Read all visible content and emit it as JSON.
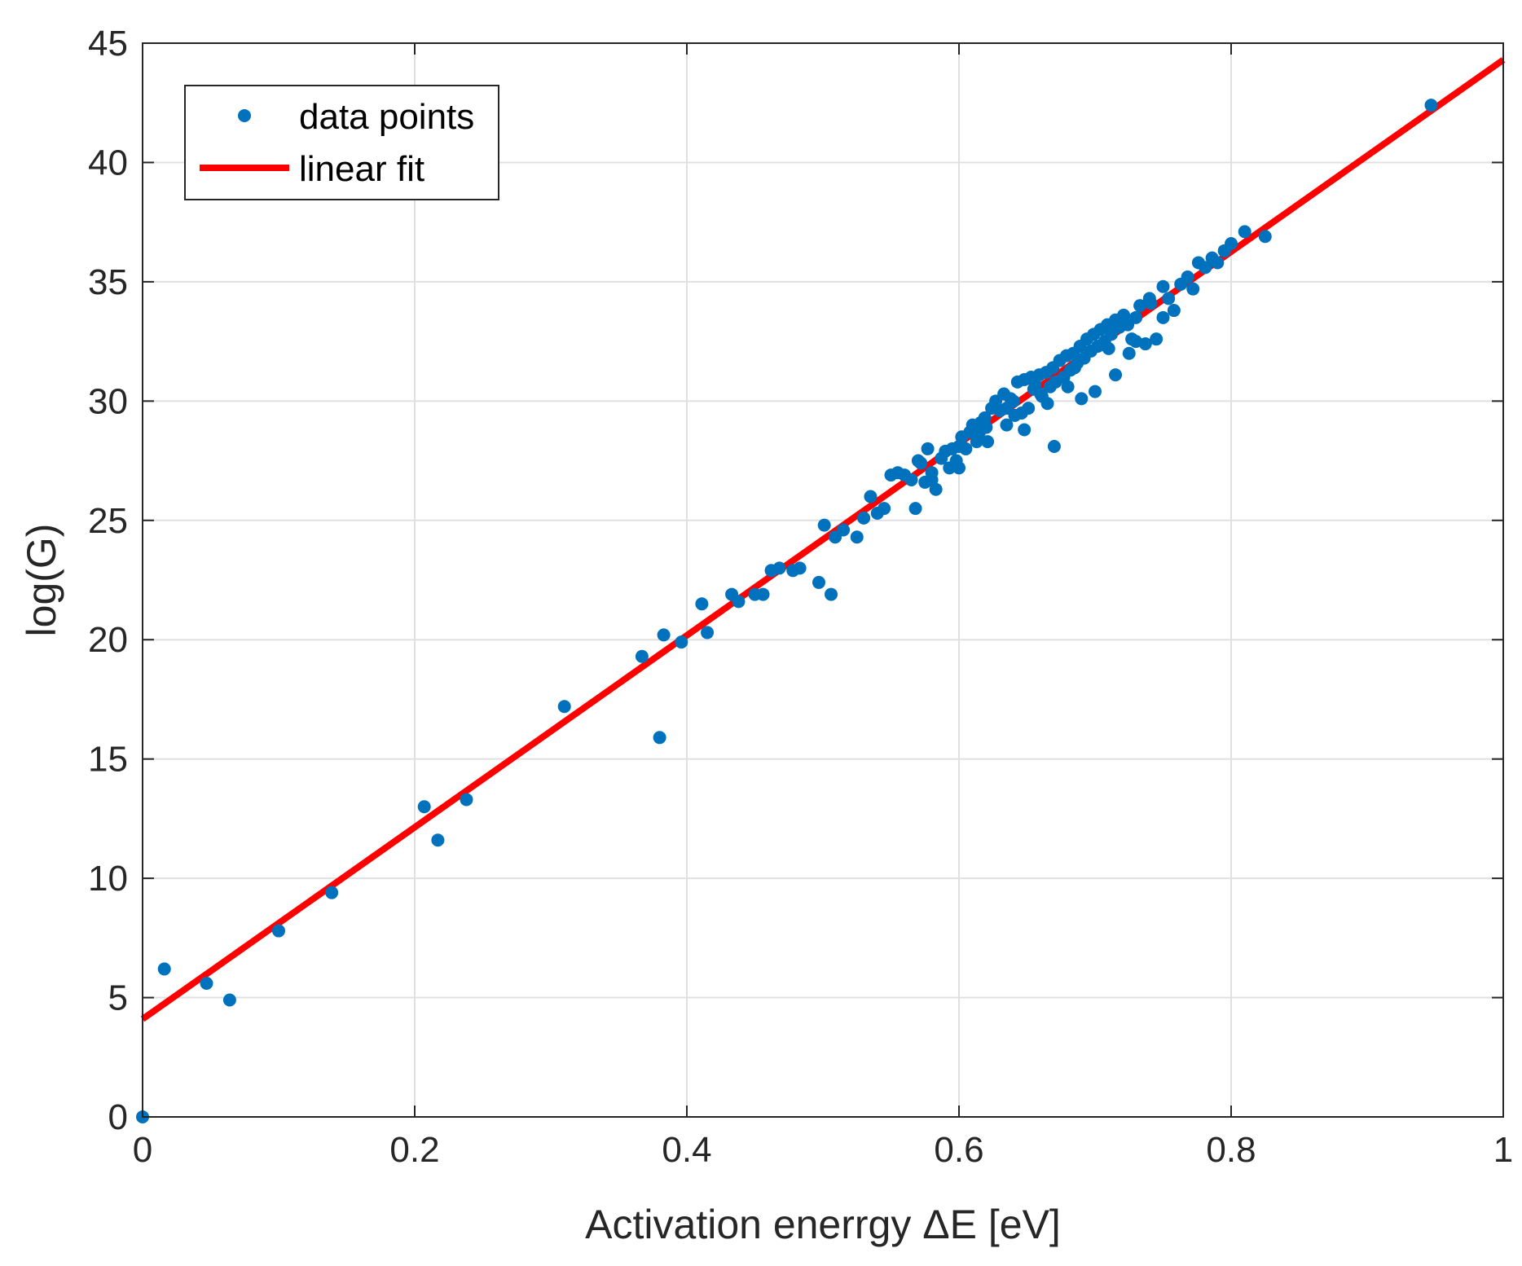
{
  "chart_data": {
    "type": "scatter",
    "title": "",
    "xlabel": "Activation enerrgy ΔE [eV]",
    "ylabel": "log(G)",
    "xlim": [
      0,
      1
    ],
    "ylim": [
      0,
      45
    ],
    "xticks": [
      0,
      0.2,
      0.4,
      0.6,
      0.8,
      1
    ],
    "xtick_labels": [
      "0",
      "0.2",
      "0.4",
      "0.6",
      "0.8",
      "1"
    ],
    "yticks": [
      0,
      5,
      10,
      15,
      20,
      25,
      30,
      35,
      40,
      45
    ],
    "ytick_labels": [
      "0",
      "5",
      "10",
      "15",
      "20",
      "25",
      "30",
      "35",
      "40",
      "45"
    ],
    "grid": true,
    "legend_position": "top-left",
    "colors": {
      "points": "#0072BD",
      "fit": "#FF0000",
      "grid": "#E0E0E0",
      "axis": "#262626"
    },
    "series": [
      {
        "name": "data points",
        "kind": "scatter",
        "x": [
          0.0,
          0.016,
          0.047,
          0.064,
          0.1,
          0.139,
          0.207,
          0.217,
          0.238,
          0.31,
          0.367,
          0.38,
          0.383,
          0.396,
          0.411,
          0.415,
          0.433,
          0.438,
          0.45,
          0.456,
          0.462,
          0.468,
          0.478,
          0.483,
          0.497,
          0.501,
          0.506,
          0.509,
          0.515,
          0.525,
          0.53,
          0.535,
          0.54,
          0.545,
          0.55,
          0.555,
          0.56,
          0.565,
          0.568,
          0.572,
          0.575,
          0.577,
          0.58,
          0.583,
          0.587,
          0.59,
          0.593,
          0.595,
          0.598,
          0.6,
          0.602,
          0.605,
          0.608,
          0.61,
          0.613,
          0.616,
          0.619,
          0.621,
          0.624,
          0.627,
          0.63,
          0.633,
          0.635,
          0.638,
          0.641,
          0.643,
          0.646,
          0.648,
          0.651,
          0.653,
          0.656,
          0.659,
          0.661,
          0.664,
          0.667,
          0.669,
          0.671,
          0.674,
          0.677,
          0.679,
          0.682,
          0.684,
          0.687,
          0.689,
          0.692,
          0.694,
          0.697,
          0.699,
          0.702,
          0.704,
          0.707,
          0.709,
          0.712,
          0.715,
          0.718,
          0.721,
          0.724,
          0.727,
          0.73,
          0.733,
          0.737,
          0.741,
          0.745,
          0.75,
          0.754,
          0.758,
          0.763,
          0.768,
          0.772,
          0.776,
          0.781,
          0.786,
          0.79,
          0.795,
          0.8,
          0.81,
          0.825,
          0.947,
          0.67,
          0.648,
          0.7,
          0.665,
          0.715,
          0.69,
          0.74,
          0.64,
          0.62,
          0.58,
          0.57,
          0.66,
          0.68,
          0.75,
          0.71,
          0.725,
          0.73,
          0.685,
          0.655,
          0.635,
          0.615,
          0.6
        ],
        "y": [
          0.0,
          6.2,
          5.6,
          4.9,
          7.8,
          9.4,
          13.0,
          11.6,
          13.3,
          17.2,
          19.3,
          15.9,
          20.2,
          19.9,
          21.5,
          20.3,
          21.9,
          21.6,
          21.9,
          21.9,
          22.9,
          23.0,
          22.9,
          23.0,
          22.4,
          24.8,
          21.9,
          24.3,
          24.6,
          24.3,
          25.1,
          26.0,
          25.3,
          25.5,
          26.9,
          27.0,
          26.9,
          26.7,
          25.5,
          27.4,
          26.6,
          28.0,
          27.0,
          26.3,
          27.6,
          27.9,
          27.2,
          28.0,
          27.5,
          27.2,
          28.5,
          28.0,
          28.7,
          29.0,
          28.3,
          29.1,
          29.3,
          28.3,
          29.7,
          30.0,
          29.6,
          30.3,
          29.0,
          30.1,
          29.4,
          30.8,
          29.5,
          30.9,
          29.7,
          31.0,
          30.7,
          31.1,
          30.2,
          31.2,
          30.6,
          31.4,
          30.8,
          31.7,
          31.0,
          31.9,
          31.3,
          32.0,
          31.6,
          32.3,
          31.8,
          32.6,
          32.1,
          32.8,
          32.3,
          33.0,
          32.5,
          33.2,
          32.8,
          33.4,
          33.1,
          33.6,
          33.2,
          32.6,
          33.5,
          34.0,
          32.4,
          34.1,
          32.6,
          34.8,
          34.3,
          33.8,
          34.9,
          35.2,
          34.7,
          35.8,
          35.6,
          36.0,
          35.8,
          36.3,
          36.6,
          37.1,
          36.9,
          42.4,
          28.1,
          28.8,
          30.4,
          29.9,
          31.1,
          30.1,
          34.3,
          30.0,
          28.9,
          26.7,
          27.5,
          30.3,
          30.6,
          33.5,
          32.2,
          32.0,
          32.5,
          31.4,
          30.5,
          29.7,
          28.7,
          28.1
        ]
      },
      {
        "name": "linear fit",
        "kind": "line",
        "x": [
          0,
          1
        ],
        "y": [
          4.1,
          44.3
        ]
      }
    ]
  }
}
